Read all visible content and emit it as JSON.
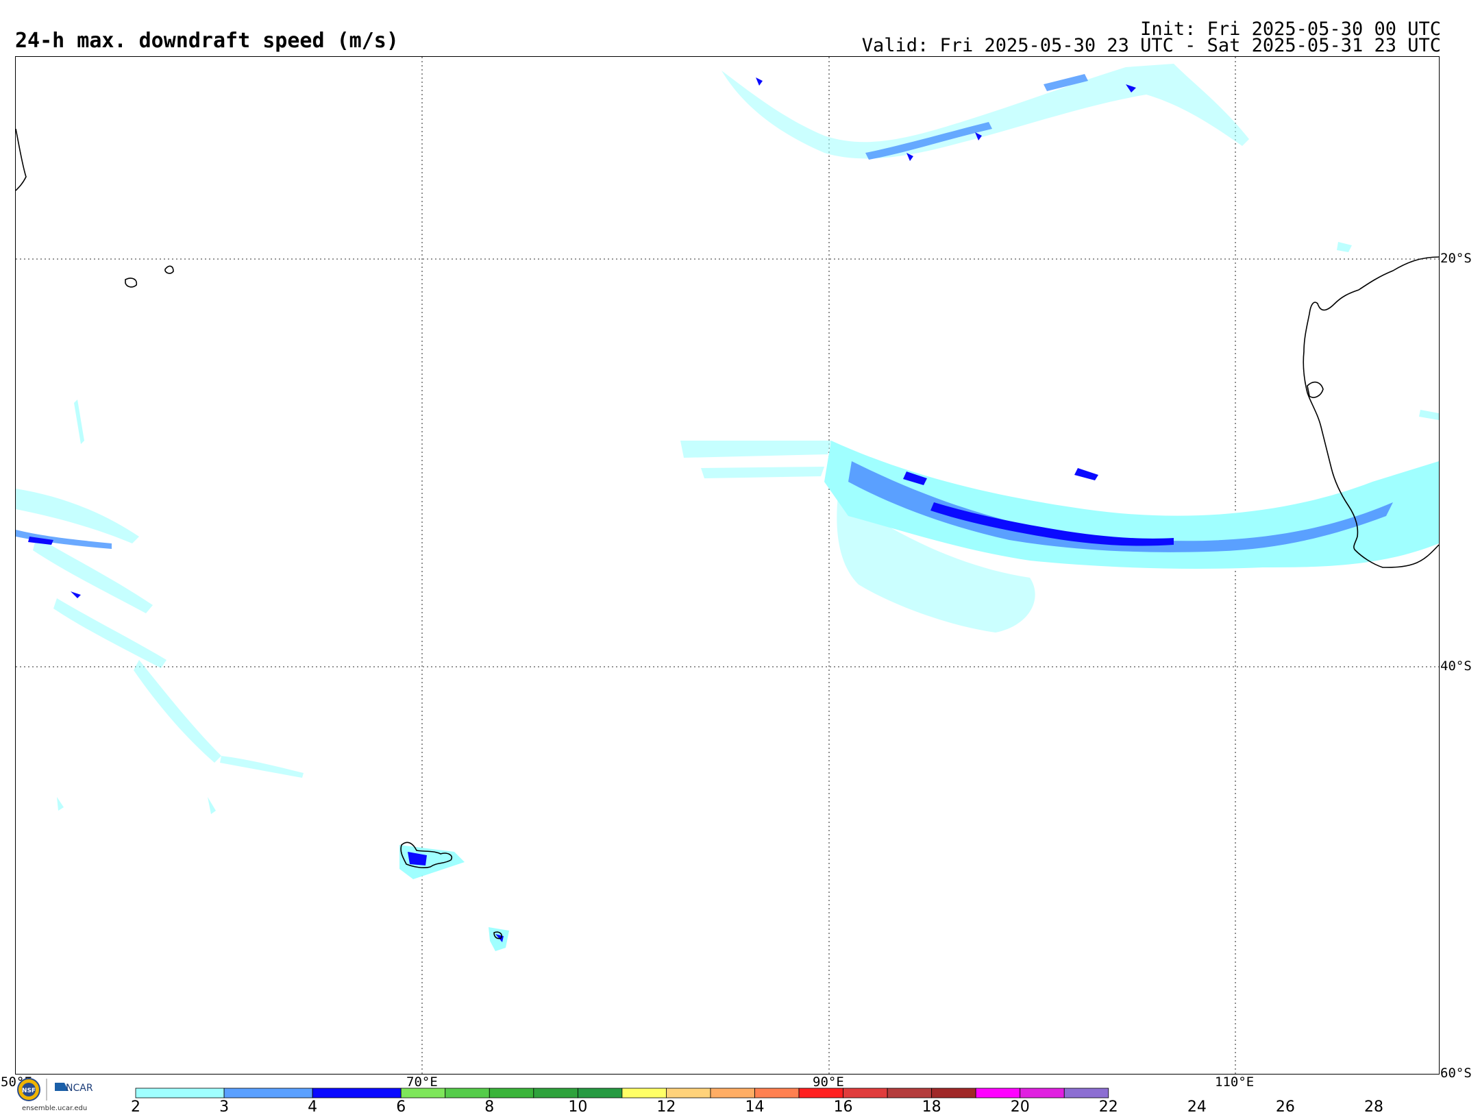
{
  "header": {
    "title": "24-h max. downdraft speed (m/s)",
    "init": "Init: Fri 2025-05-30 00 UTC",
    "valid": "Valid: Fri 2025-05-30 23 UTC - Sat 2025-05-31 23 UTC"
  },
  "map": {
    "lat_labels": [
      "20°S",
      "40°S",
      "60°S"
    ],
    "lon_labels": [
      "50°E",
      "70°E",
      "90°E",
      "110°E"
    ],
    "extent": {
      "lon_min": 50,
      "lon_max": 120,
      "lat_min": -60,
      "lat_max": -10
    },
    "gridline_style": "dotted",
    "coastline_color": "#000000"
  },
  "colorbar": {
    "ticks": [
      "2",
      "3",
      "4",
      "6",
      "8",
      "10",
      "12",
      "14",
      "16",
      "18",
      "20",
      "22",
      "24",
      "26",
      "28"
    ],
    "colors": [
      "#a0ffff",
      "#5aa0ff",
      "#0a0aff",
      "#7ee65a",
      "#55cc4a",
      "#3ab43a",
      "#2ea23c",
      "#269a42",
      "#ffff66",
      "#ffd27a",
      "#ffad64",
      "#ff8050",
      "#ff2020",
      "#e03c3c",
      "#b43c3c",
      "#a02828",
      "#ff00ff",
      "#e020e0",
      "#8c6ed2"
    ]
  },
  "logos": {
    "nsf": "NSF",
    "ncar": "NCAR",
    "url": "ensemble.ucar.edu"
  }
}
